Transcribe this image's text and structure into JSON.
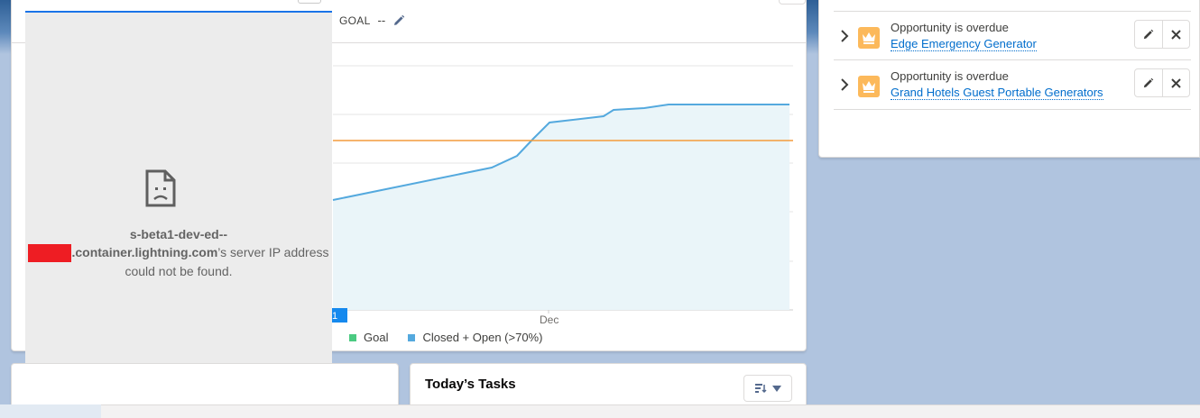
{
  "performance": {
    "goal_label": "GOAL",
    "goal_value": "--",
    "chart_data": {
      "type": "area",
      "title": "",
      "xlabel": "",
      "ylabel": "",
      "x_tick_labels": [
        "Dec"
      ],
      "series": [
        {
          "name": "Goal",
          "color": "#4bca81"
        },
        {
          "name": "Closed + Open (>70%)",
          "color": "#54a9de"
        }
      ],
      "grid": true,
      "legend_position": "bottom"
    },
    "legend": {
      "goal": "Goal",
      "closed_open": "Closed + Open (>70%)"
    },
    "today_marker": "1",
    "x_tick": "Dec"
  },
  "error": {
    "host_prefix": "s-beta1-dev-ed--",
    "host_suffix": ".container.lightning.com",
    "message_tail": "’s server IP address could not be found."
  },
  "activity": {
    "items": [
      {
        "title": "Opportunity is overdue",
        "link": "Edge Emergency Generator"
      },
      {
        "title": "Opportunity is overdue",
        "link": "Grand Hotels Guest Portable Generators"
      }
    ]
  },
  "tasks": {
    "title": "Today’s Tasks"
  },
  "colors": {
    "accent": "#006dcc",
    "goal_line": "#f49c3c",
    "area_line": "#54a9de",
    "goal_swatch": "#4bca81",
    "crown": "#fcb95b"
  }
}
